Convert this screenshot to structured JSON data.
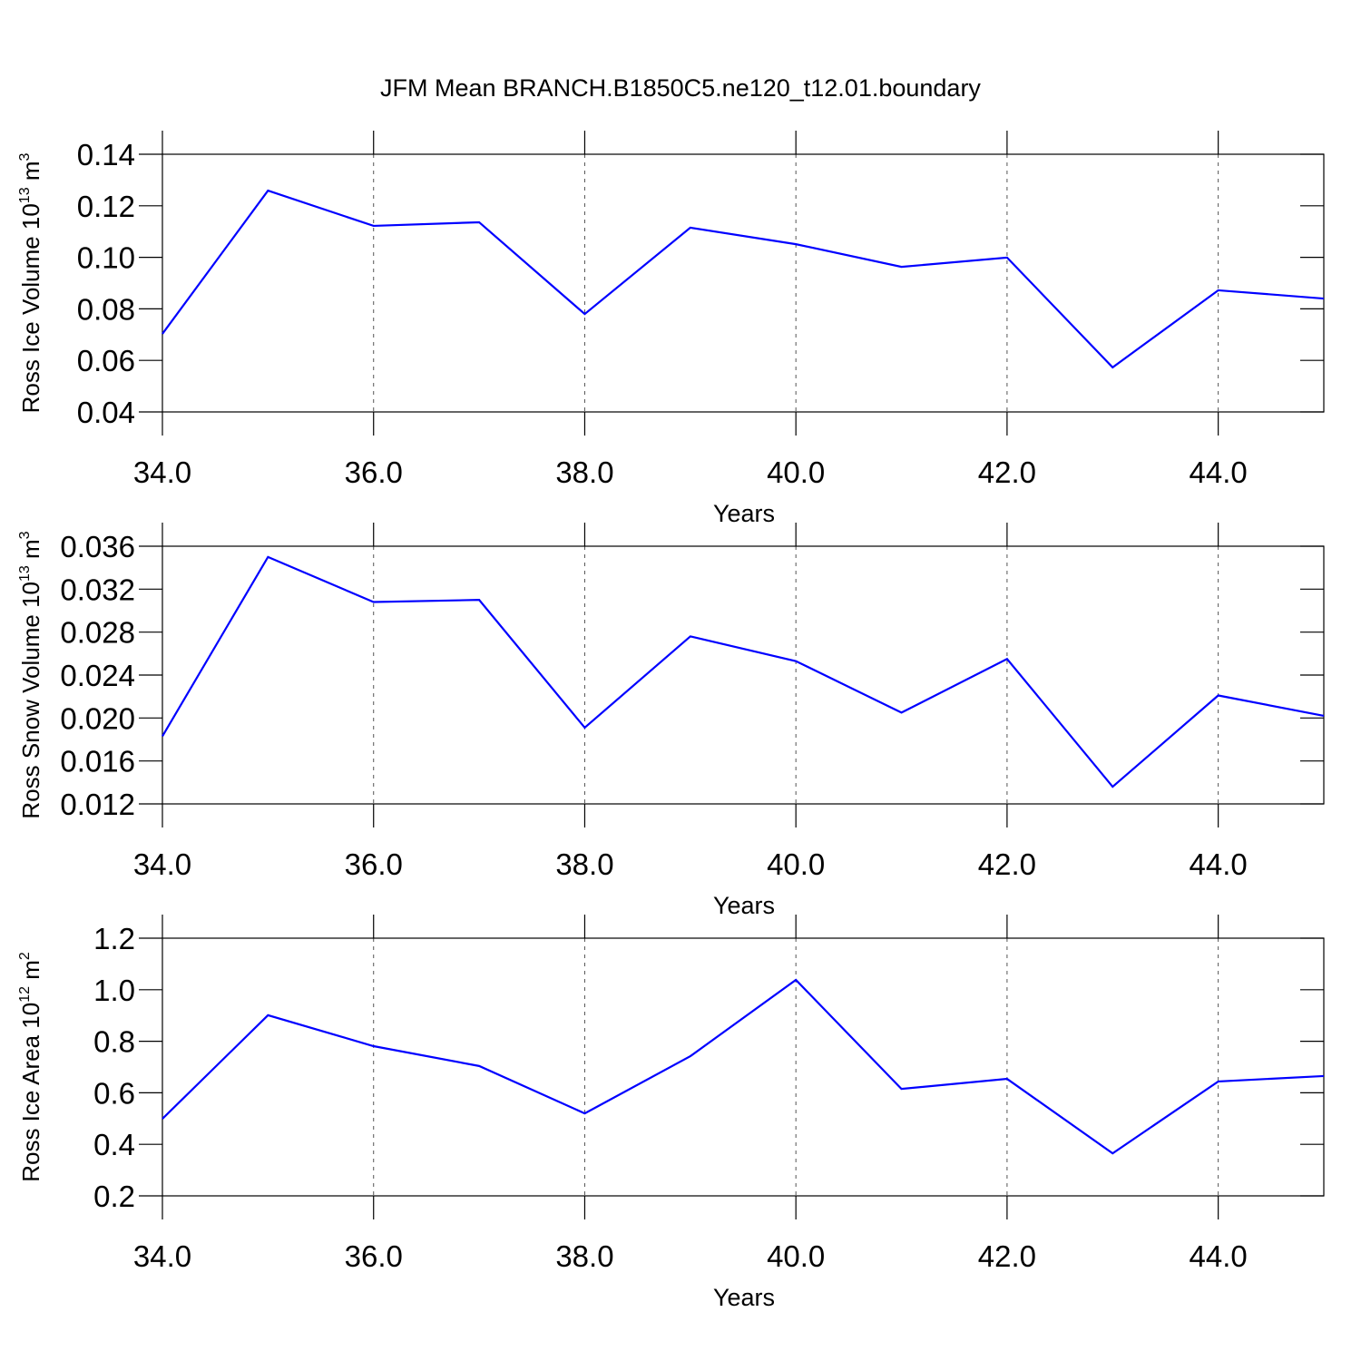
{
  "title": "JFM Mean BRANCH.B1850C5.ne120_t12.01.boundary",
  "chart_data": [
    {
      "type": "line",
      "xlabel": "Years",
      "ylabel": [
        "Ross Ice Volume 10",
        "13",
        " m",
        "3"
      ],
      "x": [
        34,
        35,
        36,
        37,
        38,
        39,
        40,
        41,
        42,
        43,
        44,
        45
      ],
      "series": [
        {
          "color": "#0000ff",
          "values": [
            0.0703,
            0.1259,
            0.1122,
            0.1136,
            0.078,
            0.1115,
            0.1051,
            0.0963,
            0.0999,
            0.0573,
            0.0872,
            0.084
          ]
        }
      ],
      "xlim": [
        34,
        45
      ],
      "xticks": [
        {
          "value": 34,
          "label": "34.0"
        },
        {
          "value": 36,
          "label": "36.0"
        },
        {
          "value": 38,
          "label": "38.0"
        },
        {
          "value": 40,
          "label": "40.0"
        },
        {
          "value": 42,
          "label": "42.0"
        },
        {
          "value": 44,
          "label": "44.0"
        }
      ],
      "ylim": [
        0.04,
        0.14
      ],
      "yticks": [
        0.04,
        0.06,
        0.08,
        {
          "value": 0.1,
          "label": "0.10"
        },
        0.12,
        0.14
      ],
      "grid": "x-dashed"
    },
    {
      "type": "line",
      "xlabel": "Years",
      "ylabel": [
        "Ross Snow Volume 10",
        "13",
        " m",
        "3"
      ],
      "x": [
        34,
        35,
        36,
        37,
        38,
        39,
        40,
        41,
        42,
        43,
        44,
        45
      ],
      "series": [
        {
          "color": "#0000ff",
          "values": [
            0.0183,
            0.035,
            0.0308,
            0.031,
            0.0191,
            0.0276,
            0.0253,
            0.0205,
            0.0255,
            0.0136,
            0.0221,
            0.0202
          ]
        }
      ],
      "xlim": [
        34,
        45
      ],
      "xticks": [
        {
          "value": 34,
          "label": "34.0"
        },
        {
          "value": 36,
          "label": "36.0"
        },
        {
          "value": 38,
          "label": "38.0"
        },
        {
          "value": 40,
          "label": "40.0"
        },
        {
          "value": 42,
          "label": "42.0"
        },
        {
          "value": 44,
          "label": "44.0"
        }
      ],
      "ylim": [
        0.012,
        0.036
      ],
      "yticks": [
        0.012,
        0.016,
        {
          "value": 0.02,
          "label": "0.020"
        },
        0.024,
        0.028,
        0.032,
        0.036
      ],
      "grid": "x-dashed"
    },
    {
      "type": "line",
      "xlabel": "Years",
      "ylabel": [
        "Ross Ice Area 10",
        "12",
        " m",
        "2"
      ],
      "x": [
        34,
        35,
        36,
        37,
        38,
        39,
        40,
        41,
        42,
        43,
        44,
        45
      ],
      "series": [
        {
          "color": "#0000ff",
          "values": [
            0.499,
            0.901,
            0.781,
            0.704,
            0.52,
            0.742,
            1.038,
            0.615,
            0.654,
            0.365,
            0.644,
            0.665
          ]
        }
      ],
      "xlim": [
        34,
        45
      ],
      "xticks": [
        {
          "value": 34,
          "label": "34.0"
        },
        {
          "value": 36,
          "label": "36.0"
        },
        {
          "value": 38,
          "label": "38.0"
        },
        {
          "value": 40,
          "label": "40.0"
        },
        {
          "value": 42,
          "label": "42.0"
        },
        {
          "value": 44,
          "label": "44.0"
        }
      ],
      "ylim": [
        0.2,
        1.2
      ],
      "yticks": [
        0.2,
        0.4,
        0.6,
        0.8,
        {
          "value": 1,
          "label": "1.0"
        },
        1.2
      ],
      "grid": "x-dashed"
    }
  ]
}
